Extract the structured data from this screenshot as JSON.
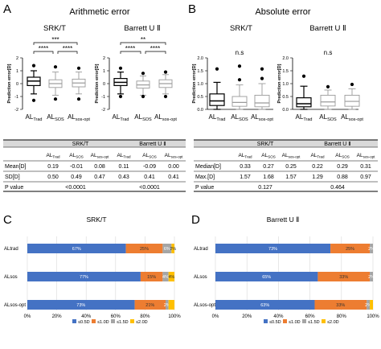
{
  "panels": {
    "A": {
      "letter": "A",
      "title": "Arithmetic error",
      "subplots": [
        {
          "title": "SRK/T",
          "ylabel": "Prediction error[D]"
        },
        {
          "title": "Barrett U Ⅱ",
          "ylabel": "Prediction error[D]"
        }
      ],
      "ytick_labels": [
        "2",
        "1",
        "0",
        "-1",
        "-2"
      ],
      "x_labels": [
        {
          "base": "AL",
          "sub": "Trad"
        },
        {
          "base": "AL",
          "sub": "SOS"
        },
        {
          "base": "AL",
          "sub": "sos-opt"
        }
      ],
      "sig_srkt": [
        "***",
        "****",
        "****"
      ],
      "sig_barrett": [
        "**",
        "****",
        "****"
      ]
    },
    "B": {
      "letter": "B",
      "title": "Absolute error",
      "subplots": [
        {
          "title": "SRK/T",
          "ylabel": "Prediction error[D]"
        },
        {
          "title": "Barrett U Ⅱ",
          "ylabel": "Prediction error[D]"
        }
      ],
      "ytick_labels": [
        "2.0",
        "1.5",
        "1.0",
        "0.5",
        "0.0"
      ],
      "x_labels": [
        {
          "base": "AL",
          "sub": "Trad"
        },
        {
          "base": "AL",
          "sub": "SOS"
        },
        {
          "base": "AL",
          "sub": "sos-opt"
        }
      ],
      "ns_label": "n.s"
    },
    "C": {
      "letter": "C",
      "title": "SRK/T"
    },
    "D": {
      "letter": "D",
      "title": "Barrett U Ⅱ"
    }
  },
  "tables": {
    "A": {
      "group_headers": [
        "SRK/T",
        "Barrett U  Ⅱ"
      ],
      "col_headers": [
        {
          "base": "AL",
          "sub": "Trad"
        },
        {
          "base": "AL",
          "sub": "SOS"
        },
        {
          "base": "AL",
          "sub": "sos-opt"
        },
        {
          "base": "AL",
          "sub": "Trad"
        },
        {
          "base": "AL",
          "sub": "SOS"
        },
        {
          "base": "AL",
          "sub": "sos-opt"
        }
      ],
      "rows": [
        {
          "label": "Mean[D]",
          "cells": [
            "0.19",
            "-0.01",
            "0.08",
            "0.11",
            "-0.09",
            "0.00"
          ]
        },
        {
          "label": "SD[D]",
          "cells": [
            "0.50",
            "0.49",
            "0.47",
            "0.43",
            "0.41",
            "0.41"
          ]
        }
      ],
      "pvalue_label": "P value",
      "pvalues": [
        "<0.0001",
        "<0.0001"
      ]
    },
    "B": {
      "group_headers": [
        "SRK/T",
        "Barrett U  Ⅱ"
      ],
      "col_headers": [
        {
          "base": "AL",
          "sub": "Trad"
        },
        {
          "base": "AL",
          "sub": "SOS"
        },
        {
          "base": "AL",
          "sub": "sos-opt"
        },
        {
          "base": "AL",
          "sub": "Trad"
        },
        {
          "base": "AL",
          "sub": "SOS"
        },
        {
          "base": "AL",
          "sub": "sos-opt"
        }
      ],
      "rows": [
        {
          "label": "Median[D]",
          "cells": [
            "0.33",
            "0.27",
            "0.25",
            "0.22",
            "0.29",
            "0.31"
          ]
        },
        {
          "label": "Max.[D]",
          "cells": [
            "1.57",
            "1.68",
            "1.57",
            "1.29",
            "0.88",
            "0.97"
          ]
        }
      ],
      "pvalue_label": "P value",
      "pvalues": [
        "0.127",
        "0.464"
      ]
    }
  },
  "colors": {
    "le05": "#4472C4",
    "le10": "#ED7D31",
    "le15": "#A5A5A5",
    "le20": "#FFC000",
    "table_header": "#d9d9d9",
    "box_gray": "#9a9a9a"
  },
  "chart_data": [
    {
      "type": "box",
      "panel": "A",
      "title": "SRK/T",
      "ylabel": "Prediction error[D]",
      "ylim": [
        -2,
        2
      ],
      "categories": [
        "AL_Trad",
        "AL_SOS",
        "AL_sos-opt"
      ],
      "boxes": [
        {
          "whisker_low": -0.8,
          "q1": -0.15,
          "median": 0.2,
          "q3": 0.5,
          "whisker_high": 1.0,
          "outliers": [
            -1.3,
            1.4
          ]
        },
        {
          "whisker_low": -0.9,
          "q1": -0.3,
          "median": 0.0,
          "q3": 0.3,
          "whisker_high": 0.9,
          "outliers": [
            -1.2,
            1.3
          ]
        },
        {
          "whisker_low": -0.8,
          "q1": -0.25,
          "median": 0.05,
          "q3": 0.35,
          "whisker_high": 0.9,
          "outliers": [
            -1.2,
            1.2
          ]
        }
      ]
    },
    {
      "type": "box",
      "panel": "A",
      "title": "Barrett U Ⅱ",
      "ylabel": "Prediction error[D]",
      "ylim": [
        -2,
        2
      ],
      "categories": [
        "AL_Trad",
        "AL_SOS",
        "AL_sos-opt"
      ],
      "boxes": [
        {
          "whisker_low": -0.8,
          "q1": -0.15,
          "median": 0.1,
          "q3": 0.4,
          "whisker_high": 0.9,
          "outliers": [
            -1.0,
            1.2
          ]
        },
        {
          "whisker_low": -0.9,
          "q1": -0.35,
          "median": -0.1,
          "q3": 0.2,
          "whisker_high": 0.6,
          "outliers": [
            -1.0,
            0.8
          ]
        },
        {
          "whisker_low": -0.8,
          "q1": -0.3,
          "median": 0.0,
          "q3": 0.3,
          "whisker_high": 0.7,
          "outliers": [
            -1.0,
            0.9
          ]
        }
      ]
    },
    {
      "type": "box",
      "panel": "B",
      "title": "SRK/T",
      "ylabel": "Prediction error[D]",
      "ylim": [
        0,
        2
      ],
      "categories": [
        "AL_Trad",
        "AL_SOS",
        "AL_sos-opt"
      ],
      "annotation": "n.s",
      "boxes": [
        {
          "whisker_low": 0.0,
          "q1": 0.15,
          "median": 0.33,
          "q3": 0.6,
          "whisker_high": 1.05,
          "outliers": [
            1.57
          ]
        },
        {
          "whisker_low": 0.0,
          "q1": 0.12,
          "median": 0.27,
          "q3": 0.5,
          "whisker_high": 0.95,
          "outliers": [
            1.15,
            1.68
          ]
        },
        {
          "whisker_low": 0.0,
          "q1": 0.1,
          "median": 0.25,
          "q3": 0.55,
          "whisker_high": 1.0,
          "outliers": [
            1.2,
            1.57
          ]
        }
      ]
    },
    {
      "type": "box",
      "panel": "B",
      "title": "Barrett U Ⅱ",
      "ylabel": "Prediction error[D]",
      "ylim": [
        0,
        2
      ],
      "categories": [
        "AL_Trad",
        "AL_SOS",
        "AL_sos-opt"
      ],
      "boxes": [
        {
          "whisker_low": 0.0,
          "q1": 0.1,
          "median": 0.22,
          "q3": 0.45,
          "whisker_high": 0.9,
          "outliers": [
            1.29
          ]
        },
        {
          "whisker_low": 0.0,
          "q1": 0.13,
          "median": 0.29,
          "q3": 0.55,
          "whisker_high": 0.75,
          "outliers": [
            0.88
          ]
        },
        {
          "whisker_low": 0.0,
          "q1": 0.12,
          "median": 0.31,
          "q3": 0.55,
          "whisker_high": 0.8,
          "outliers": [
            0.97
          ]
        }
      ]
    },
    {
      "type": "bar",
      "stacked": true,
      "orientation": "horizontal",
      "panel": "C",
      "title": "SRK/T",
      "categories": [
        "ALtrad",
        "ALsos",
        "ALsos-opt"
      ],
      "xlim": [
        0,
        100
      ],
      "xtick_labels": [
        "0%",
        "20%",
        "40%",
        "60%",
        "80%",
        "100%"
      ],
      "series": [
        {
          "name": "≤0.5D",
          "values": [
            67,
            77,
            73
          ],
          "labels": [
            "67%",
            "77%",
            "73%"
          ]
        },
        {
          "name": "≤1.0D",
          "values": [
            25,
            15,
            21
          ],
          "labels": [
            "25%",
            "15%",
            "21%"
          ]
        },
        {
          "name": "≤1.5D",
          "values": [
            6,
            4,
            2
          ],
          "labels": [
            "6%",
            "4%",
            "2%"
          ]
        },
        {
          "name": "≤2.0D",
          "values": [
            2,
            4,
            4
          ],
          "labels": [
            "2%",
            "4%",
            ""
          ]
        }
      ]
    },
    {
      "type": "bar",
      "stacked": true,
      "orientation": "horizontal",
      "panel": "D",
      "title": "Barrett U Ⅱ",
      "categories": [
        "ALtrad",
        "ALsos",
        "ALsos-opt"
      ],
      "xlim": [
        0,
        100
      ],
      "xtick_labels": [
        "0%",
        "20%",
        "40%",
        "60%",
        "80%",
        "100%"
      ],
      "series": [
        {
          "name": "≤0.5D",
          "values": [
            73,
            65,
            63
          ],
          "labels": [
            "73%",
            "65%",
            "63%"
          ]
        },
        {
          "name": "≤1.0D",
          "values": [
            25,
            33,
            33
          ],
          "labels": [
            "25%",
            "33%",
            "33%"
          ]
        },
        {
          "name": "≤1.5D",
          "values": [
            2,
            2,
            2
          ],
          "labels": [
            "2%",
            "2%",
            "2%"
          ]
        },
        {
          "name": "≤2.0D",
          "values": [
            0,
            0,
            2
          ],
          "labels": [
            "",
            "",
            ""
          ]
        }
      ]
    }
  ]
}
